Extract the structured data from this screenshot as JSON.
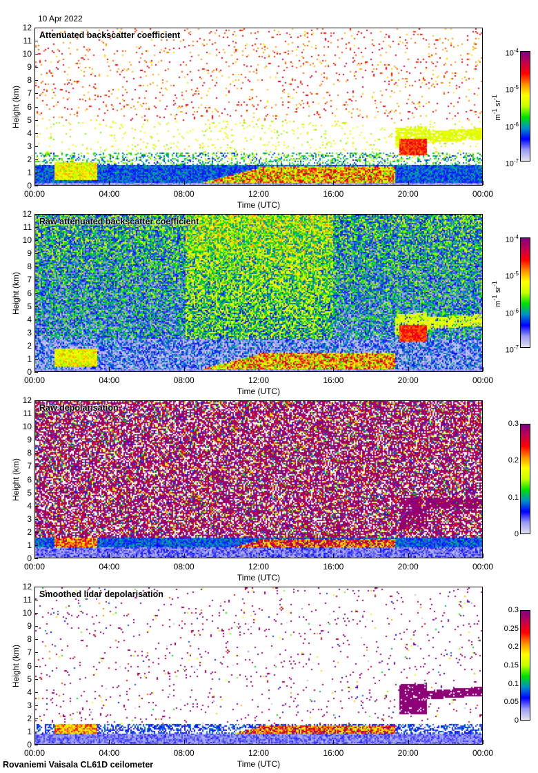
{
  "header": {
    "date": "10 Apr 2022"
  },
  "footer": {
    "instrument": "Rovaniemi Vaisala CL61D ceilometer"
  },
  "colors": {
    "colormap": [
      "#e2e2ee",
      "#9a9af2",
      "#0000ff",
      "#0090c8",
      "#00e000",
      "#c8ff00",
      "#ffff00",
      "#ff9000",
      "#ff0000",
      "#c00050",
      "#800080"
    ]
  },
  "chart_data": [
    {
      "type": "heatmap",
      "title": "Attenuated backscatter coefficient",
      "xlabel": "Time (UTC)",
      "ylabel": "Height (km)",
      "xlim": [
        0,
        24
      ],
      "ylim": [
        0,
        12
      ],
      "xticks": [
        "00:00",
        "04:00",
        "08:00",
        "12:00",
        "16:00",
        "20:00",
        "00:00"
      ],
      "yticks": [
        "0",
        "1",
        "2",
        "3",
        "4",
        "5",
        "6",
        "7",
        "8",
        "9",
        "10",
        "11",
        "12"
      ],
      "colorbar": {
        "scale": "log",
        "range": [
          1e-07,
          0.0001
        ],
        "ticks": [
          {
            "base": "10",
            "exp": "-7"
          },
          {
            "base": "10",
            "exp": "-6"
          },
          {
            "base": "10",
            "exp": "-5"
          },
          {
            "base": "10",
            "exp": "-4"
          }
        ],
        "unit": {
          "m": "m",
          "mexp": "-1",
          "sr": " sr",
          "srexp": "-1"
        }
      }
    },
    {
      "type": "heatmap",
      "title": "Raw attenuated backscatter coefficient",
      "xlabel": "Time (UTC)",
      "ylabel": "Height (km)",
      "xlim": [
        0,
        24
      ],
      "ylim": [
        0,
        12
      ],
      "xticks": [
        "00:00",
        "04:00",
        "08:00",
        "12:00",
        "16:00",
        "20:00",
        "00:00"
      ],
      "yticks": [
        "0",
        "1",
        "2",
        "3",
        "4",
        "5",
        "6",
        "7",
        "8",
        "9",
        "10",
        "11",
        "12"
      ],
      "colorbar": {
        "scale": "log",
        "range": [
          1e-07,
          0.0001
        ],
        "ticks": [
          {
            "base": "10",
            "exp": "-7"
          },
          {
            "base": "10",
            "exp": "-6"
          },
          {
            "base": "10",
            "exp": "-5"
          },
          {
            "base": "10",
            "exp": "-4"
          }
        ],
        "unit": {
          "m": "m",
          "mexp": "-1",
          "sr": " sr",
          "srexp": "-1"
        }
      }
    },
    {
      "type": "heatmap",
      "title": "Raw depolarisation",
      "xlabel": "Time (UTC)",
      "ylabel": "Height (km)",
      "xlim": [
        0,
        24
      ],
      "ylim": [
        0,
        12
      ],
      "xticks": [
        "00:00",
        "04:00",
        "08:00",
        "12:00",
        "16:00",
        "20:00",
        "00:00"
      ],
      "yticks": [
        "0",
        "1",
        "2",
        "3",
        "4",
        "5",
        "6",
        "7",
        "8",
        "9",
        "10",
        "11",
        "12"
      ],
      "colorbar": {
        "scale": "linear",
        "range": [
          0,
          0.3
        ],
        "ticks": [
          {
            "base": "0"
          },
          {
            "base": "0.1"
          },
          {
            "base": "0.2"
          },
          {
            "base": "0.3"
          }
        ]
      }
    },
    {
      "type": "heatmap",
      "title": "Smoothed lidar depolarisation",
      "xlabel": "Time (UTC)",
      "ylabel": "Height (km)",
      "xlim": [
        0,
        24
      ],
      "ylim": [
        0,
        12
      ],
      "xticks": [
        "00:00",
        "04:00",
        "08:00",
        "12:00",
        "16:00",
        "20:00",
        "00:00"
      ],
      "yticks": [
        "0",
        "1",
        "2",
        "3",
        "4",
        "5",
        "6",
        "7",
        "8",
        "9",
        "10",
        "11",
        "12"
      ],
      "colorbar": {
        "scale": "linear",
        "range": [
          0,
          0.3
        ],
        "ticks": [
          {
            "base": "0"
          },
          {
            "base": "0.05"
          },
          {
            "base": "0.1"
          },
          {
            "base": "0.15"
          },
          {
            "base": "0.2"
          },
          {
            "base": "0.25"
          },
          {
            "base": "0.3"
          }
        ]
      }
    }
  ]
}
